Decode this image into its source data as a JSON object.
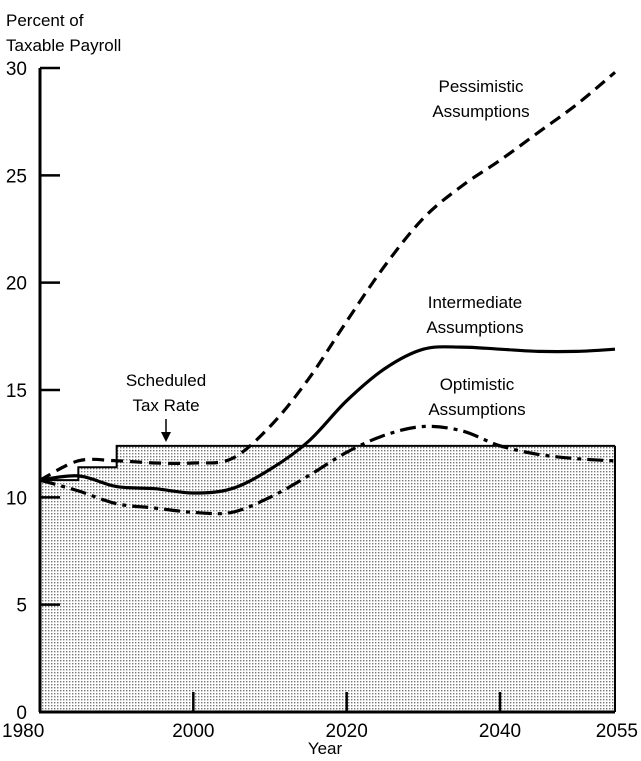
{
  "chart_data": {
    "type": "line",
    "title": "",
    "ylabel_lines": [
      "Percent of",
      "Taxable Payroll"
    ],
    "xlabel": "Year",
    "xlim": [
      1980,
      2055
    ],
    "ylim": [
      0,
      30
    ],
    "x_ticks": [
      1980,
      2000,
      2020,
      2040,
      2055
    ],
    "x_tick_labels": [
      "1980",
      "2000",
      "2020",
      "2040",
      "2055"
    ],
    "y_ticks": [
      0,
      5,
      10,
      15,
      20,
      25,
      30
    ],
    "y_tick_labels": [
      "0",
      "5",
      "10",
      "15",
      "20",
      "25",
      "30"
    ],
    "grid": false,
    "colors": {
      "line": "#000000",
      "fill": "#d4d4d4",
      "background": "#ffffff"
    },
    "scheduled_tax_rate": {
      "label_lines": [
        "Scheduled",
        "Tax Rate"
      ],
      "points": [
        [
          1980,
          10.8
        ],
        [
          1985,
          10.8
        ],
        [
          1985,
          11.4
        ],
        [
          1990,
          11.4
        ],
        [
          1990,
          12.4
        ],
        [
          2055,
          12.4
        ]
      ]
    },
    "series": [
      {
        "name": "Pessimistic Assumptions",
        "label_lines": [
          "Pessimistic",
          "Assumptions"
        ],
        "style": "dashed",
        "points": [
          [
            1980,
            10.8
          ],
          [
            1985,
            11.7
          ],
          [
            1990,
            11.7
          ],
          [
            1995,
            11.6
          ],
          [
            2000,
            11.6
          ],
          [
            2005,
            11.8
          ],
          [
            2010,
            13.3
          ],
          [
            2015,
            15.5
          ],
          [
            2020,
            18.2
          ],
          [
            2025,
            20.8
          ],
          [
            2030,
            23.0
          ],
          [
            2035,
            24.5
          ],
          [
            2040,
            25.7
          ],
          [
            2045,
            27.0
          ],
          [
            2050,
            28.3
          ],
          [
            2055,
            29.8
          ]
        ]
      },
      {
        "name": "Intermediate Assumptions",
        "label_lines": [
          "Intermediate",
          "Assumptions"
        ],
        "style": "solid",
        "points": [
          [
            1980,
            10.8
          ],
          [
            1985,
            11.0
          ],
          [
            1990,
            10.5
          ],
          [
            1995,
            10.4
          ],
          [
            2000,
            10.2
          ],
          [
            2005,
            10.4
          ],
          [
            2010,
            11.3
          ],
          [
            2015,
            12.6
          ],
          [
            2020,
            14.5
          ],
          [
            2025,
            16.0
          ],
          [
            2030,
            16.9
          ],
          [
            2035,
            17.0
          ],
          [
            2040,
            16.9
          ],
          [
            2045,
            16.8
          ],
          [
            2050,
            16.8
          ],
          [
            2055,
            16.9
          ]
        ]
      },
      {
        "name": "Optimistic Assumptions",
        "label_lines": [
          "Optimistic",
          "Assumptions"
        ],
        "style": "dashdot",
        "points": [
          [
            1980,
            10.8
          ],
          [
            1985,
            10.3
          ],
          [
            1990,
            9.7
          ],
          [
            1995,
            9.5
          ],
          [
            2000,
            9.3
          ],
          [
            2005,
            9.3
          ],
          [
            2010,
            10.0
          ],
          [
            2015,
            11.0
          ],
          [
            2020,
            12.1
          ],
          [
            2025,
            12.9
          ],
          [
            2030,
            13.3
          ],
          [
            2035,
            13.1
          ],
          [
            2040,
            12.4
          ],
          [
            2045,
            12.0
          ],
          [
            2050,
            11.8
          ],
          [
            2055,
            11.7
          ]
        ]
      }
    ]
  }
}
